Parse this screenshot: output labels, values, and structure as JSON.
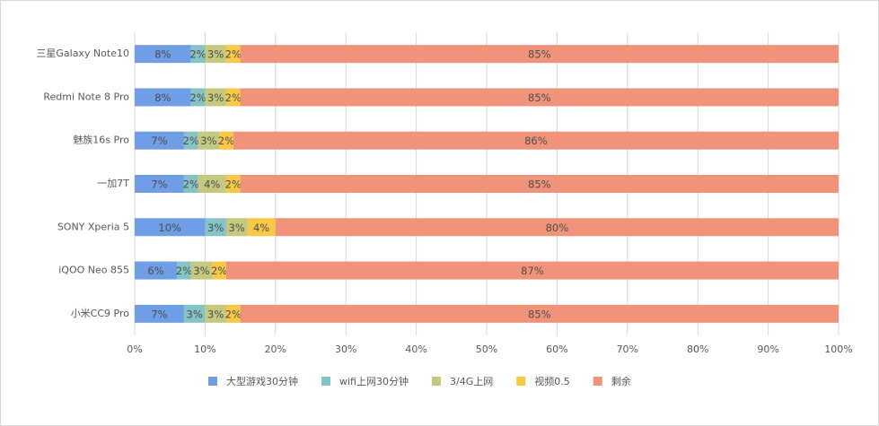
{
  "chart_data": {
    "type": "stacked-barh",
    "categories": [
      "三星Galaxy Note10",
      "Redmi Note 8 Pro",
      "魅族16s Pro",
      "一加7T",
      "SONY Xperia 5",
      "iQOO Neo 855",
      "小米CC9 Pro"
    ],
    "series": [
      {
        "name": "大型游戏30分钟",
        "color": "#6f9de6",
        "values": [
          8,
          8,
          7,
          7,
          10,
          6,
          7
        ],
        "value_labels": [
          "8%",
          "8%",
          "7%",
          "7%",
          "10%",
          "6%",
          "7%"
        ]
      },
      {
        "name": "wifi上网30分钟",
        "color": "#85c3c6",
        "values": [
          2,
          2,
          2,
          2,
          3,
          2,
          3
        ],
        "value_labels": [
          "2%",
          "2%",
          "2%",
          "2%",
          "3%",
          "2%",
          "3%"
        ]
      },
      {
        "name": "3/4G上网",
        "color": "#c4c97f",
        "values": [
          3,
          3,
          3,
          4,
          3,
          3,
          3
        ],
        "value_labels": [
          "3%",
          "3%",
          "3%",
          "4%",
          "3%",
          "3%",
          "3%"
        ]
      },
      {
        "name": "视频0.5",
        "color": "#f8c846",
        "values": [
          2,
          2,
          2,
          2,
          4,
          2,
          2
        ],
        "value_labels": [
          "2%",
          "2%",
          "2%",
          "2%",
          "4%",
          "2%",
          "2%"
        ]
      },
      {
        "name": "剩余",
        "color": "#f1937a",
        "values": [
          85,
          85,
          86,
          85,
          80,
          87,
          85
        ],
        "value_labels": [
          "85%",
          "85%",
          "86%",
          "85%",
          "80%",
          "87%",
          "85%"
        ]
      }
    ],
    "xlim": [
      0,
      100
    ],
    "xticks": [
      {
        "value": 0,
        "label": "0%"
      },
      {
        "value": 10,
        "label": "10%"
      },
      {
        "value": 20,
        "label": "20%"
      },
      {
        "value": 30,
        "label": "30%"
      },
      {
        "value": 40,
        "label": "40%"
      },
      {
        "value": 50,
        "label": "50%"
      },
      {
        "value": 60,
        "label": "60%"
      },
      {
        "value": 70,
        "label": "70%"
      },
      {
        "value": 80,
        "label": "80%"
      },
      {
        "value": 90,
        "label": "90%"
      },
      {
        "value": 100,
        "label": "100%"
      }
    ],
    "grid": true,
    "legend": "bottom"
  }
}
